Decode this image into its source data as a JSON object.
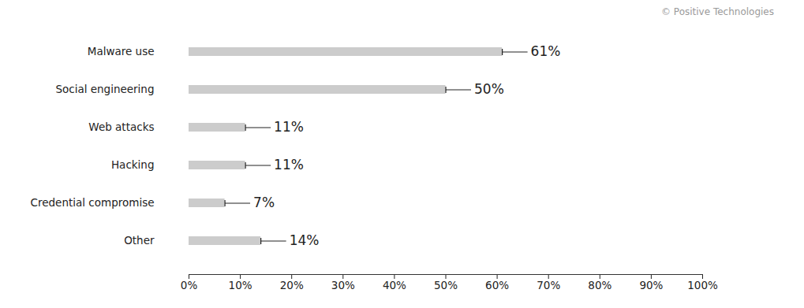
{
  "chart_data": {
    "type": "bar",
    "orientation": "horizontal",
    "annotation": "© Positive Technologies",
    "categories": [
      "Malware use",
      "Social engineering",
      "Web attacks",
      "Hacking",
      "Credential compromise",
      "Other"
    ],
    "values": [
      61,
      50,
      11,
      11,
      7,
      14
    ],
    "value_labels": [
      "61%",
      "50%",
      "11%",
      "11%",
      "7%",
      "14%"
    ],
    "data_labels": true,
    "color": "#cccccc",
    "xlim": [
      0,
      100
    ],
    "xticks": [
      {
        "value": 0,
        "label": "0%"
      },
      {
        "value": 10,
        "label": "10%"
      },
      {
        "value": 20,
        "label": "20%"
      },
      {
        "value": 30,
        "label": "30%"
      },
      {
        "value": 40,
        "label": "40%"
      },
      {
        "value": 50,
        "label": "50%"
      },
      {
        "value": 60,
        "label": "60%"
      },
      {
        "value": 70,
        "label": "70%"
      },
      {
        "value": 80,
        "label": "80%"
      },
      {
        "value": 90,
        "label": "90%"
      },
      {
        "value": 100,
        "label": "100%"
      }
    ],
    "grid": false
  }
}
